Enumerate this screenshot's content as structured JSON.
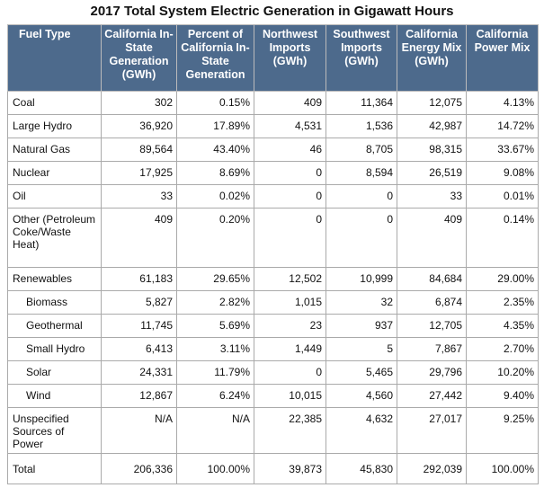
{
  "title": "2017 Total System Electric Generation in Gigawatt Hours",
  "table": {
    "header": [
      "Fuel Type",
      "California In-State Generation (GWh)",
      "Percent of California In-State Generation",
      "Northwest Imports (GWh)",
      "Southwest Imports (GWh)",
      "California Energy Mix (GWh)",
      "California Power Mix"
    ],
    "rows": [
      [
        "Coal",
        "302",
        "0.15%",
        "409",
        "11,364",
        "12,075",
        "4.13%"
      ],
      [
        "Large Hydro",
        "36,920",
        "17.89%",
        "4,531",
        "1,536",
        "42,987",
        "14.72%"
      ],
      [
        "Natural Gas",
        "89,564",
        "43.40%",
        "46",
        "8,705",
        "98,315",
        "33.67%"
      ],
      [
        "Nuclear",
        "17,925",
        "8.69%",
        "0",
        "8,594",
        "26,519",
        "9.08%"
      ],
      [
        "Oil",
        "33",
        "0.02%",
        "0",
        "0",
        "33",
        "0.01%"
      ],
      [
        "Other (Petroleum Coke/Waste Heat)",
        "409",
        "0.20%",
        "0",
        "0",
        "409",
        "0.14%"
      ],
      [
        "Renewables",
        "61,183",
        "29.65%",
        "12,502",
        "10,999",
        "84,684",
        "29.00%"
      ],
      [
        "Biomass",
        "5,827",
        "2.82%",
        "1,015",
        "32",
        "6,874",
        "2.35%"
      ],
      [
        "Geothermal",
        "11,745",
        "5.69%",
        "23",
        "937",
        "12,705",
        "4.35%"
      ],
      [
        "Small Hydro",
        "6,413",
        "3.11%",
        "1,449",
        "5",
        "7,867",
        "2.70%"
      ],
      [
        "Solar",
        "24,331",
        "11.79%",
        "0",
        "5,465",
        "29,796",
        "10.20%"
      ],
      [
        "Wind",
        "12,867",
        "6.24%",
        "10,015",
        "4,560",
        "27,442",
        "9.40%"
      ],
      [
        "Unspecified Sources of Power",
        "N/A",
        "N/A",
        "22,385",
        "4,632",
        "27,017",
        "9.25%"
      ],
      [
        "Total",
        "206,336",
        "100.00%",
        "39,873",
        "45,830",
        "292,039",
        "100.00%"
      ]
    ]
  }
}
